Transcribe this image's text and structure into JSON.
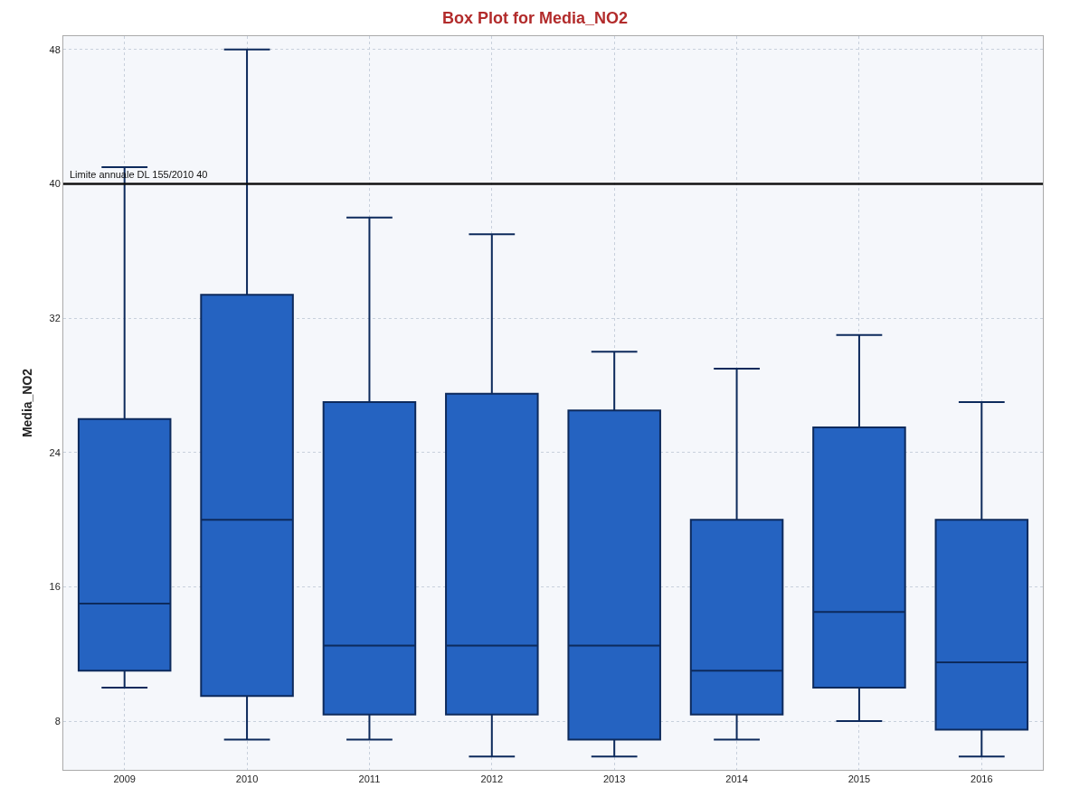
{
  "chart_data": {
    "type": "box",
    "title": "Box Plot for Media_NO2",
    "ylabel": "Media_NO2",
    "categories": [
      "2009",
      "2010",
      "2011",
      "2012",
      "2013",
      "2014",
      "2015",
      "2016"
    ],
    "boxes": [
      {
        "low": 10,
        "q1": 11,
        "median": 15,
        "q3": 26,
        "high": 41
      },
      {
        "low": 6.9,
        "q1": 9.5,
        "median": 20,
        "q3": 33.4,
        "high": 48
      },
      {
        "low": 6.9,
        "q1": 8.4,
        "median": 12.5,
        "q3": 27,
        "high": 38
      },
      {
        "low": 5.9,
        "q1": 8.4,
        "median": 12.5,
        "q3": 27.5,
        "high": 37
      },
      {
        "low": 5.9,
        "q1": 6.9,
        "median": 12.5,
        "q3": 26.5,
        "high": 30
      },
      {
        "low": 6.9,
        "q1": 8.4,
        "median": 11,
        "q3": 20,
        "high": 29
      },
      {
        "low": 8,
        "q1": 10,
        "median": 14.5,
        "q3": 25.5,
        "high": 31
      },
      {
        "low": 5.9,
        "q1": 7.5,
        "median": 11.5,
        "q3": 20,
        "high": 27
      }
    ],
    "color": "#2563c1",
    "ylim": [
      5.1,
      48.8
    ],
    "yticks": [
      8,
      16,
      24,
      32,
      40,
      48
    ],
    "grid": true,
    "ref_lines": [
      {
        "axis": "y",
        "value": 40,
        "label": "Limite annuale DL 155/2010 40",
        "color": "#111111"
      }
    ]
  }
}
